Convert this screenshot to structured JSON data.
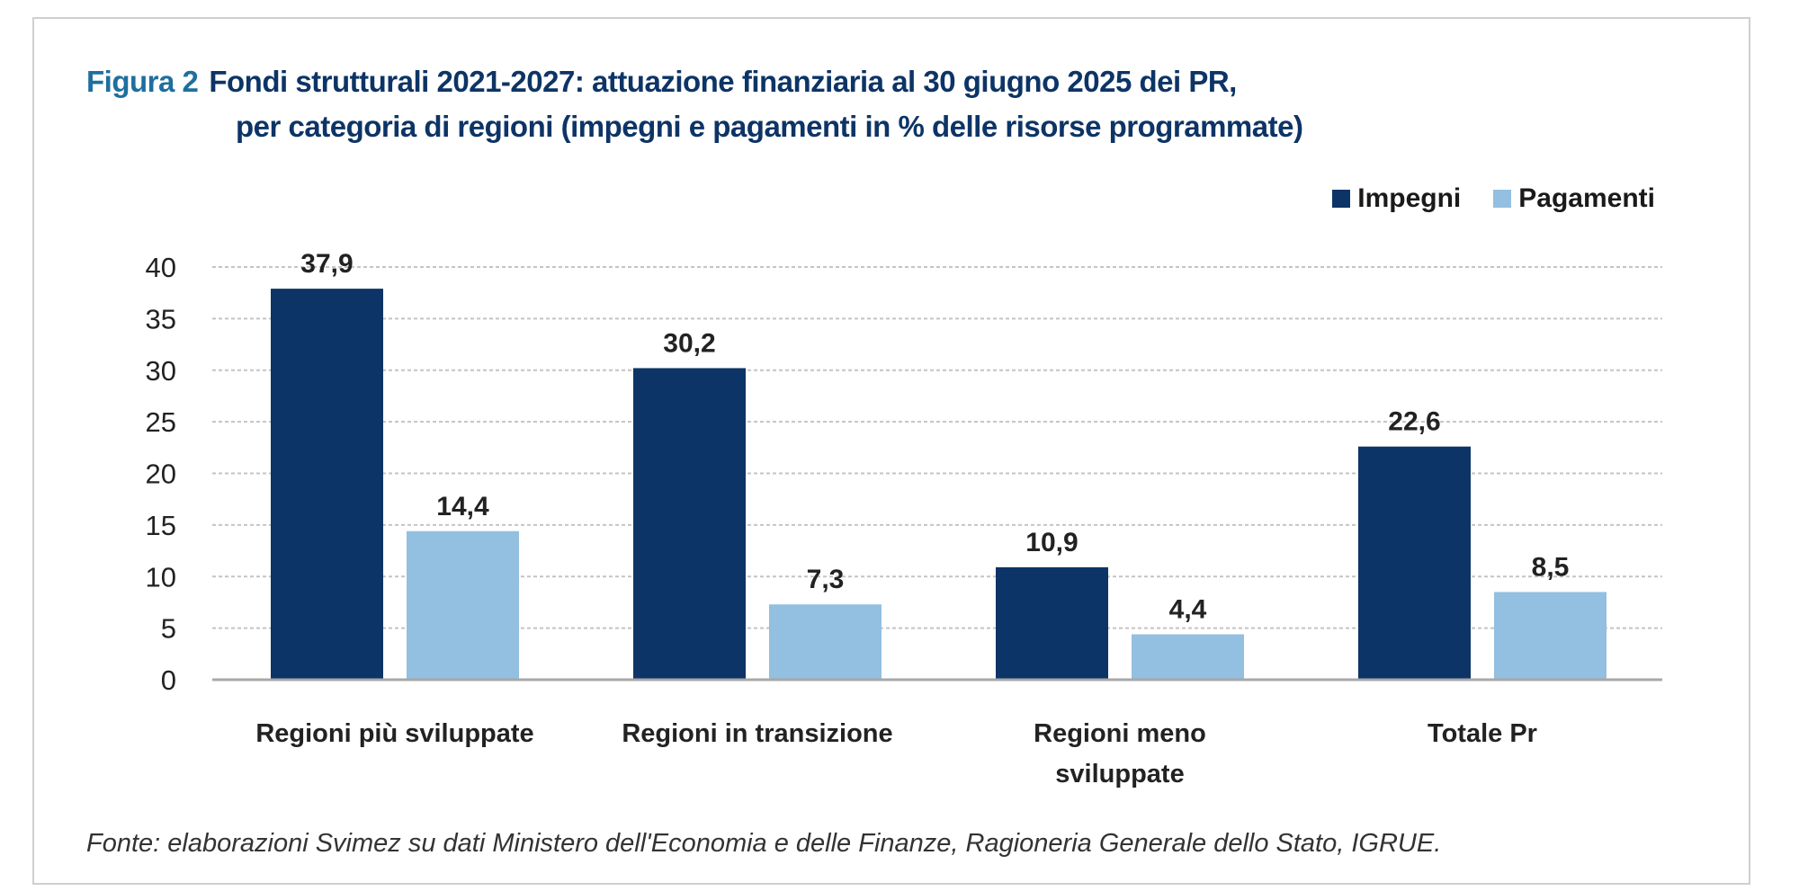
{
  "figure_label": "Figura 2",
  "title_line1": "Fondi strutturali 2021-2027: attuazione finanziaria al 30 giugno 2025 dei PR,",
  "title_line2": "per categoria di regioni (impegni e pagamenti in % delle risorse programmate)",
  "source": "Fonte: elaborazioni Svimez su dati Ministero dell'Economia e delle Finanze, Ragioneria Generale dello Stato, IGRUE.",
  "colors": {
    "impegni": "#0d3466",
    "pagamenti": "#93bfe0",
    "figure_label": "#1e6f9f"
  },
  "chart_data": {
    "type": "bar",
    "categories": [
      [
        "Regioni più sviluppate"
      ],
      [
        "Regioni in transizione"
      ],
      [
        "Regioni meno",
        "sviluppate"
      ],
      [
        "Totale Pr"
      ]
    ],
    "series": [
      {
        "name": "Impegni",
        "values": [
          37.9,
          30.2,
          10.9,
          22.6
        ],
        "labels": [
          "37,9",
          "30,2",
          "10,9",
          "22,6"
        ]
      },
      {
        "name": "Pagamenti",
        "values": [
          14.4,
          7.3,
          4.4,
          8.5
        ],
        "labels": [
          "14,4",
          "7,3",
          "4,4",
          "8,5"
        ]
      }
    ],
    "yticks": [
      "0",
      "5",
      "10",
      "15",
      "20",
      "25",
      "30",
      "35",
      "40"
    ],
    "ylim": [
      0,
      40
    ],
    "grid": true,
    "legend": "top-right"
  }
}
